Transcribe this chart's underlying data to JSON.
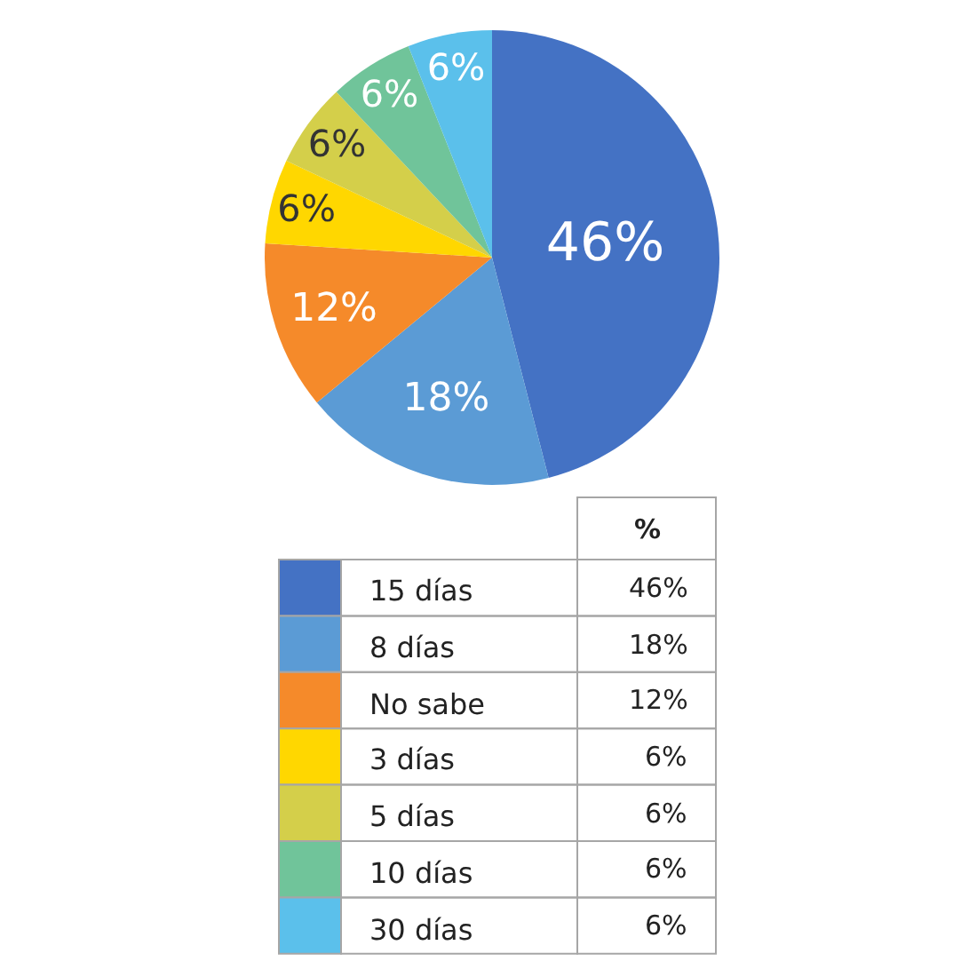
{
  "chart_data": {
    "type": "pie",
    "legend": "bottom",
    "legend_title": "%",
    "data_labels": true,
    "categories": [
      "15 días",
      "8 días",
      "No sabe",
      "3 días",
      "5 días",
      "10 días",
      "30 días"
    ],
    "values": [
      46,
      18,
      12,
      6,
      6,
      6,
      6
    ],
    "value_labels": [
      "46%",
      "18%",
      "12%",
      "6%",
      "6%",
      "6%",
      "6%"
    ],
    "colors": [
      "#4472c4",
      "#5b9bd5",
      "#f58a2a",
      "#ffd700",
      "#d4cf4a",
      "#70c49a",
      "#5bc0eb"
    ]
  }
}
